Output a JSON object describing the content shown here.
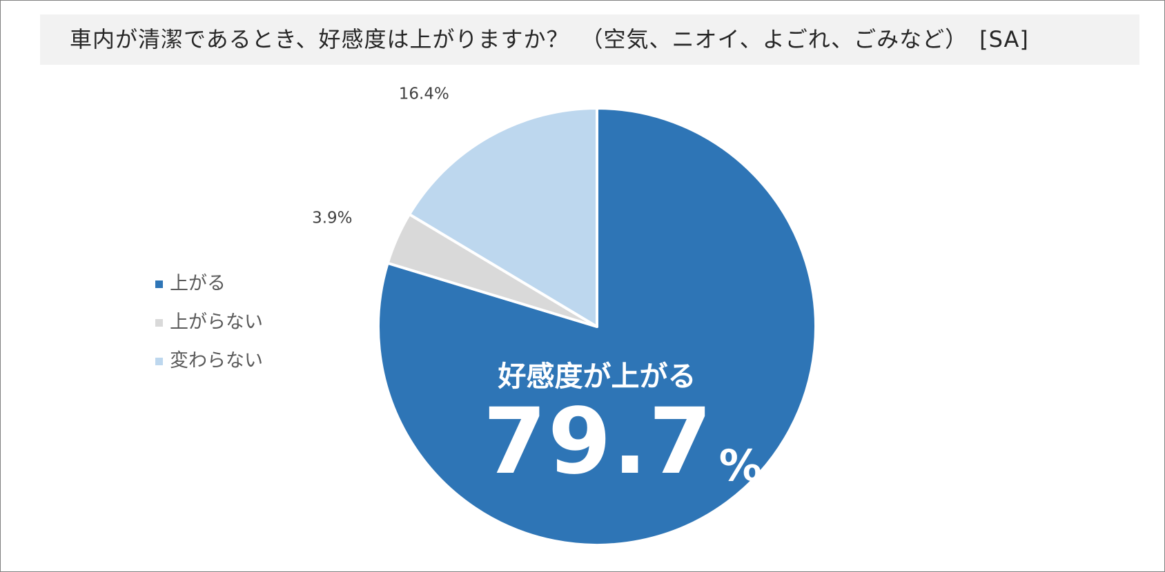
{
  "colors": {
    "up": "#2e75b6",
    "not_up": "#d9d9d9",
    "unchanged": "#bdd7ee",
    "title_bg": "#f2f2f2"
  },
  "chart_data": {
    "type": "pie",
    "title": "車内が清潔であるとき、好感度は上がりますか？　（空気、ニオイ、よごれ、ごみなど）　[SA]",
    "legend_position": "left",
    "start_angle": "12 o'clock",
    "direction": "clockwise",
    "slices": [
      {
        "name": "上がる",
        "value": 79.7,
        "label": "",
        "color": "#2e75b6"
      },
      {
        "name": "上がらない",
        "value": 3.9,
        "label": "3.9%",
        "color": "#d9d9d9"
      },
      {
        "name": "変わらない",
        "value": 16.4,
        "label": "16.4%",
        "color": "#bdd7ee"
      }
    ],
    "callout": {
      "caption": "好感度が上がる",
      "value": "79.7",
      "unit": "%"
    }
  }
}
